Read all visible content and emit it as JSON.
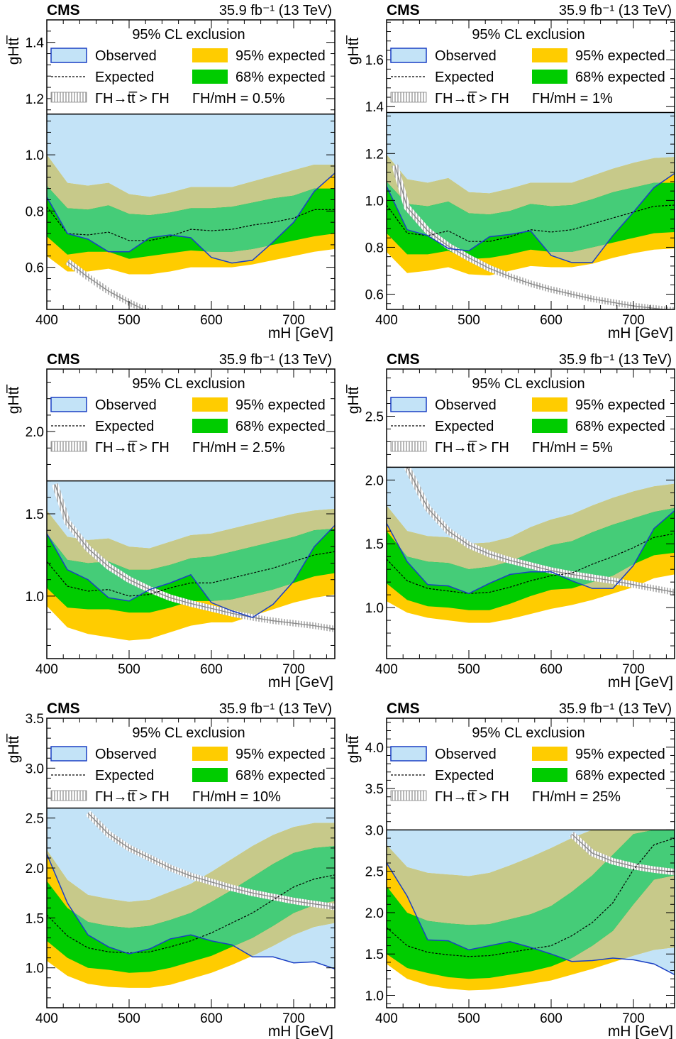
{
  "colors": {
    "observed_fill": "#c3e3f7",
    "observed_line": "#1a3fc4",
    "band95": "#ffcc00",
    "band68": "#00cc00",
    "overlay_olive": "#c7c98a",
    "overlay_green": "#45cc78",
    "hatch": "#888888"
  },
  "chart_data": [
    {
      "type": "line",
      "cms_label": "CMS",
      "lumi_label": "35.9 fb⁻¹ (13 TeV)",
      "legend_header": "95% CL exclusion",
      "legend_observed": "Observed",
      "legend_expected": "Expected",
      "legend_95": "95% expected",
      "legend_68": "68% expected",
      "legend_width_ratio": "ΓH→tt̅ > ΓH",
      "width_label": "ΓH/mH = 0.5%",
      "ylabel": "gHtt̅",
      "xlabel": "mH [GeV]",
      "xlim": [
        400,
        750
      ],
      "ylim": [
        0.45,
        1.48
      ],
      "y_legend_bottom": 1.145,
      "y_ticks": [
        0.6,
        0.8,
        1.0,
        1.2,
        1.4
      ],
      "y_tick_labels": [
        "0.6",
        "0.8",
        "1.0",
        "1.2",
        "1.4"
      ],
      "x_ticks": [
        400,
        500,
        600,
        700
      ],
      "x_tick_labels": [
        "400",
        "500",
        "600",
        "700"
      ],
      "mass": [
        400,
        425,
        450,
        475,
        500,
        525,
        550,
        575,
        600,
        625,
        650,
        675,
        700,
        725,
        750
      ],
      "observed": [
        0.85,
        0.72,
        0.7,
        0.655,
        0.655,
        0.705,
        0.715,
        0.705,
        0.635,
        0.615,
        0.625,
        0.69,
        0.76,
        0.87,
        0.935
      ],
      "expected": [
        0.815,
        0.72,
        0.715,
        0.725,
        0.695,
        0.695,
        0.71,
        0.735,
        0.73,
        0.735,
        0.75,
        0.76,
        0.775,
        0.805,
        0.805
      ],
      "expected_68_low": [
        0.71,
        0.645,
        0.655,
        0.655,
        0.63,
        0.64,
        0.65,
        0.66,
        0.655,
        0.655,
        0.665,
        0.68,
        0.695,
        0.71,
        0.72
      ],
      "expected_68_high": [
        0.89,
        0.81,
        0.805,
        0.82,
        0.79,
        0.785,
        0.795,
        0.81,
        0.81,
        0.815,
        0.83,
        0.845,
        0.855,
        0.88,
        0.88
      ],
      "expected_95_low": [
        0.64,
        0.585,
        0.585,
        0.595,
        0.575,
        0.575,
        0.585,
        0.6,
        0.6,
        0.6,
        0.61,
        0.625,
        0.64,
        0.655,
        0.665
      ],
      "expected_95_high": [
        1.0,
        0.9,
        0.89,
        0.9,
        0.86,
        0.85,
        0.865,
        0.885,
        0.885,
        0.885,
        0.905,
        0.925,
        0.945,
        0.965,
        0.965
      ],
      "width_limit_mass": [
        425,
        450,
        475,
        500,
        525,
        550,
        575,
        600,
        625,
        650,
        675,
        700,
        725,
        750
      ],
      "width_limit": [
        0.62,
        0.565,
        0.515,
        0.475,
        0.44,
        0.41,
        0.385,
        0.36,
        0.34,
        0.32,
        0.305,
        0.29,
        0.275,
        0.26
      ]
    },
    {
      "type": "line",
      "cms_label": "CMS",
      "lumi_label": "35.9 fb⁻¹ (13 TeV)",
      "legend_header": "95% CL exclusion",
      "legend_observed": "Observed",
      "legend_expected": "Expected",
      "legend_95": "95% expected",
      "legend_68": "68% expected",
      "legend_width_ratio": "ΓH→tt̅ > ΓH",
      "width_label": "ΓH/mH = 1%",
      "ylabel": "gHtt̅",
      "xlabel": "mH [GeV]",
      "xlim": [
        400,
        750
      ],
      "ylim": [
        0.535,
        1.77
      ],
      "y_legend_bottom": 1.375,
      "y_ticks": [
        0.6,
        0.8,
        1.0,
        1.2,
        1.4,
        1.6
      ],
      "y_tick_labels": [
        "0.6",
        "0.8",
        "1.0",
        "1.2",
        "1.4",
        "1.6"
      ],
      "x_ticks": [
        400,
        500,
        600,
        700
      ],
      "x_tick_labels": [
        "400",
        "500",
        "600",
        "700"
      ],
      "mass": [
        400,
        425,
        450,
        475,
        500,
        525,
        550,
        575,
        600,
        625,
        650,
        675,
        700,
        725,
        750
      ],
      "observed": [
        1.06,
        0.875,
        0.85,
        0.795,
        0.785,
        0.845,
        0.855,
        0.87,
        0.765,
        0.735,
        0.735,
        0.85,
        0.95,
        1.055,
        1.115
      ],
      "expected": [
        0.98,
        0.86,
        0.85,
        0.87,
        0.825,
        0.825,
        0.845,
        0.875,
        0.865,
        0.875,
        0.9,
        0.925,
        0.95,
        0.975,
        0.98
      ],
      "expected_68_low": [
        0.86,
        0.77,
        0.77,
        0.785,
        0.75,
        0.755,
        0.77,
        0.79,
        0.78,
        0.78,
        0.8,
        0.82,
        0.84,
        0.86,
        0.865
      ],
      "expected_68_high": [
        1.08,
        0.985,
        0.975,
        0.995,
        0.945,
        0.94,
        0.955,
        0.985,
        0.975,
        0.98,
        1.005,
        1.035,
        1.055,
        1.075,
        1.075
      ],
      "expected_95_low": [
        0.78,
        0.69,
        0.7,
        0.715,
        0.685,
        0.68,
        0.7,
        0.72,
        0.715,
        0.715,
        0.73,
        0.755,
        0.775,
        0.79,
        0.795
      ],
      "expected_95_high": [
        1.195,
        1.09,
        1.075,
        1.095,
        1.035,
        1.03,
        1.05,
        1.075,
        1.075,
        1.075,
        1.105,
        1.135,
        1.16,
        1.18,
        1.185
      ],
      "width_limit_mass": [
        410,
        425,
        450,
        475,
        500,
        525,
        550,
        575,
        600,
        625,
        650,
        675,
        700,
        725,
        750
      ],
      "width_limit": [
        1.15,
        0.97,
        0.87,
        0.805,
        0.755,
        0.71,
        0.675,
        0.645,
        0.62,
        0.6,
        0.58,
        0.565,
        0.55,
        0.54,
        0.53
      ]
    },
    {
      "type": "line",
      "cms_label": "CMS",
      "lumi_label": "35.9 fb⁻¹ (13 TeV)",
      "legend_header": "95% CL exclusion",
      "legend_observed": "Observed",
      "legend_expected": "Expected",
      "legend_95": "95% expected",
      "legend_68": "68% expected",
      "legend_width_ratio": "ΓH→tt̅ > ΓH",
      "width_label": "ΓH/mH = 2.5%",
      "ylabel": "gHtt̅",
      "xlabel": "mH [GeV]",
      "xlim": [
        400,
        750
      ],
      "ylim": [
        0.62,
        2.38
      ],
      "y_legend_bottom": 1.7,
      "y_ticks": [
        1.0,
        1.5,
        2.0
      ],
      "y_tick_labels": [
        "1.0",
        "1.5",
        "2.0"
      ],
      "x_ticks": [
        400,
        500,
        600,
        700
      ],
      "x_tick_labels": [
        "400",
        "500",
        "600",
        "700"
      ],
      "mass": [
        400,
        425,
        450,
        475,
        500,
        525,
        550,
        575,
        600,
        625,
        650,
        675,
        700,
        725,
        750
      ],
      "observed": [
        1.38,
        1.16,
        1.1,
        0.99,
        0.97,
        1.04,
        1.08,
        1.13,
        0.96,
        0.91,
        0.87,
        0.95,
        1.09,
        1.3,
        1.43
      ],
      "expected": [
        1.21,
        1.06,
        1.03,
        1.04,
        1.0,
        1.01,
        1.05,
        1.08,
        1.08,
        1.11,
        1.14,
        1.17,
        1.21,
        1.25,
        1.27
      ],
      "expected_68_low": [
        1.05,
        0.93,
        0.92,
        0.92,
        0.9,
        0.9,
        0.93,
        0.97,
        0.97,
        0.98,
        1.01,
        1.04,
        1.08,
        1.12,
        1.14
      ],
      "expected_68_high": [
        1.38,
        1.22,
        1.2,
        1.21,
        1.16,
        1.16,
        1.19,
        1.23,
        1.24,
        1.27,
        1.3,
        1.33,
        1.36,
        1.4,
        1.41
      ],
      "expected_95_low": [
        0.94,
        0.81,
        0.77,
        0.75,
        0.73,
        0.74,
        0.78,
        0.82,
        0.84,
        0.84,
        0.88,
        0.92,
        0.96,
        0.99,
        1.01
      ],
      "expected_95_high": [
        1.52,
        1.36,
        1.34,
        1.35,
        1.3,
        1.29,
        1.33,
        1.37,
        1.38,
        1.41,
        1.44,
        1.47,
        1.5,
        1.52,
        1.53
      ],
      "width_limit_mass": [
        410,
        425,
        450,
        475,
        500,
        525,
        550,
        575,
        600,
        625,
        650,
        675,
        700,
        725,
        750
      ],
      "width_limit": [
        1.68,
        1.45,
        1.29,
        1.18,
        1.1,
        1.04,
        0.99,
        0.955,
        0.925,
        0.895,
        0.87,
        0.85,
        0.835,
        0.82,
        0.8
      ]
    },
    {
      "type": "line",
      "cms_label": "CMS",
      "lumi_label": "35.9 fb⁻¹ (13 TeV)",
      "legend_header": "95% CL exclusion",
      "legend_observed": "Observed",
      "legend_expected": "Expected",
      "legend_95": "95% expected",
      "legend_68": "68% expected",
      "legend_width_ratio": "ΓH→tt̅ > ΓH",
      "width_label": "ΓH/mH = 5%",
      "ylabel": "gHtt̅",
      "xlabel": "mH [GeV]",
      "xlim": [
        400,
        750
      ],
      "ylim": [
        0.6,
        2.87
      ],
      "y_legend_bottom": 2.1,
      "y_ticks": [
        1.0,
        1.5,
        2.0,
        2.5
      ],
      "y_tick_labels": [
        "1.0",
        "1.5",
        "2.0",
        "2.5"
      ],
      "x_ticks": [
        400,
        500,
        600,
        700
      ],
      "x_tick_labels": [
        "400",
        "500",
        "600",
        "700"
      ],
      "mass": [
        400,
        425,
        450,
        475,
        500,
        525,
        550,
        575,
        600,
        625,
        650,
        675,
        700,
        725,
        750
      ],
      "observed": [
        1.66,
        1.36,
        1.18,
        1.17,
        1.11,
        1.19,
        1.26,
        1.28,
        1.28,
        1.21,
        1.15,
        1.15,
        1.33,
        1.62,
        1.76
      ],
      "expected": [
        1.38,
        1.21,
        1.15,
        1.13,
        1.11,
        1.12,
        1.16,
        1.21,
        1.25,
        1.27,
        1.34,
        1.4,
        1.47,
        1.55,
        1.58
      ],
      "expected_68_low": [
        1.19,
        1.06,
        1.01,
        1.0,
        0.98,
        0.98,
        1.03,
        1.09,
        1.14,
        1.15,
        1.2,
        1.25,
        1.34,
        1.41,
        1.43
      ],
      "expected_68_high": [
        1.6,
        1.4,
        1.36,
        1.35,
        1.3,
        1.32,
        1.36,
        1.43,
        1.49,
        1.52,
        1.59,
        1.65,
        1.7,
        1.75,
        1.78
      ],
      "expected_95_low": [
        1.05,
        0.96,
        0.92,
        0.9,
        0.88,
        0.88,
        0.91,
        0.95,
        0.99,
        1.02,
        1.06,
        1.11,
        1.16,
        1.23,
        1.26
      ],
      "expected_95_high": [
        1.8,
        1.6,
        1.56,
        1.55,
        1.5,
        1.51,
        1.55,
        1.63,
        1.69,
        1.73,
        1.8,
        1.86,
        1.91,
        1.95,
        1.97
      ],
      "width_limit_mass": [
        425,
        450,
        475,
        500,
        525,
        550,
        575,
        600,
        625,
        650,
        675,
        700,
        725,
        750
      ],
      "width_limit": [
        2.1,
        1.78,
        1.6,
        1.49,
        1.42,
        1.37,
        1.33,
        1.29,
        1.26,
        1.235,
        1.21,
        1.18,
        1.15,
        1.12
      ]
    },
    {
      "type": "line",
      "cms_label": "CMS",
      "lumi_label": "35.9 fb⁻¹ (13 TeV)",
      "legend_header": "95% CL exclusion",
      "legend_observed": "Observed",
      "legend_expected": "Expected",
      "legend_95": "95% expected",
      "legend_68": "68% expected",
      "legend_width_ratio": "ΓH→tt̅ > ΓH",
      "width_label": "ΓH/mH = 10%",
      "ylabel": "gHtt̅",
      "xlabel": "mH [GeV]",
      "xlim": [
        400,
        750
      ],
      "ylim": [
        0.6,
        3.5
      ],
      "y_legend_bottom": 2.6,
      "y_ticks": [
        1.0,
        1.5,
        2.0,
        2.5,
        3.0,
        3.5
      ],
      "y_tick_labels": [
        "1.0",
        "1.5",
        "2.0",
        "2.5",
        "3.0",
        "3.5"
      ],
      "x_ticks": [
        400,
        500,
        600,
        700
      ],
      "x_tick_labels": [
        "400",
        "500",
        "600",
        "700"
      ],
      "mass": [
        400,
        425,
        450,
        475,
        500,
        525,
        550,
        575,
        600,
        625,
        650,
        675,
        700,
        725,
        750
      ],
      "observed": [
        2.14,
        1.65,
        1.33,
        1.21,
        1.14,
        1.19,
        1.29,
        1.33,
        1.27,
        1.23,
        1.11,
        1.11,
        1.05,
        1.06,
        0.99
      ],
      "expected": [
        1.53,
        1.32,
        1.2,
        1.16,
        1.15,
        1.16,
        1.21,
        1.27,
        1.35,
        1.45,
        1.55,
        1.68,
        1.81,
        1.89,
        1.93
      ],
      "expected_68_low": [
        1.27,
        1.1,
        1.0,
        0.98,
        0.95,
        0.96,
        1.0,
        1.06,
        1.12,
        1.21,
        1.3,
        1.42,
        1.55,
        1.63,
        1.67
      ],
      "expected_68_high": [
        1.87,
        1.6,
        1.46,
        1.42,
        1.4,
        1.42,
        1.48,
        1.55,
        1.66,
        1.78,
        1.91,
        2.04,
        2.15,
        2.2,
        2.22
      ],
      "expected_95_low": [
        1.07,
        0.92,
        0.84,
        0.81,
        0.8,
        0.8,
        0.83,
        0.89,
        0.95,
        1.03,
        1.12,
        1.22,
        1.33,
        1.41,
        1.45
      ],
      "expected_95_high": [
        2.18,
        1.88,
        1.73,
        1.69,
        1.66,
        1.68,
        1.76,
        1.84,
        1.96,
        2.09,
        2.22,
        2.33,
        2.41,
        2.45,
        2.45
      ],
      "width_limit_mass": [
        450,
        475,
        500,
        525,
        550,
        575,
        600,
        625,
        650,
        675,
        700,
        725,
        750
      ],
      "width_limit": [
        2.55,
        2.34,
        2.2,
        2.1,
        2.0,
        1.92,
        1.86,
        1.8,
        1.75,
        1.71,
        1.67,
        1.64,
        1.61
      ]
    },
    {
      "type": "line",
      "cms_label": "CMS",
      "lumi_label": "35.9 fb⁻¹ (13 TeV)",
      "legend_header": "95% CL exclusion",
      "legend_observed": "Observed",
      "legend_expected": "Expected",
      "legend_95": "95% expected",
      "legend_68": "68% expected",
      "legend_width_ratio": "ΓH→tt̅ > ΓH",
      "width_label": "ΓH/mH = 25%",
      "ylabel": "gHtt̅",
      "xlabel": "mH [GeV]",
      "xlim": [
        400,
        750
      ],
      "ylim": [
        0.85,
        4.35
      ],
      "y_legend_bottom": 3.0,
      "y_ticks": [
        1.0,
        1.5,
        2.0,
        2.5,
        3.0,
        3.5,
        4.0
      ],
      "y_tick_labels": [
        "1.0",
        "1.5",
        "2.0",
        "2.5",
        "3.0",
        "3.5",
        "4.0"
      ],
      "x_ticks": [
        400,
        500,
        600,
        700
      ],
      "x_tick_labels": [
        "400",
        "500",
        "600",
        "700"
      ],
      "mass": [
        400,
        425,
        450,
        475,
        500,
        525,
        550,
        575,
        600,
        625,
        650,
        675,
        700,
        725,
        750
      ],
      "observed": [
        2.6,
        2.2,
        1.67,
        1.66,
        1.55,
        1.6,
        1.65,
        1.58,
        1.5,
        1.41,
        1.42,
        1.45,
        1.43,
        1.38,
        1.25
      ],
      "expected": [
        1.82,
        1.6,
        1.52,
        1.49,
        1.47,
        1.48,
        1.52,
        1.56,
        1.6,
        1.72,
        1.88,
        2.12,
        2.52,
        2.82,
        2.9
      ],
      "expected_68_low": [
        1.5,
        1.33,
        1.27,
        1.22,
        1.2,
        1.21,
        1.25,
        1.29,
        1.35,
        1.45,
        1.6,
        1.78,
        2.1,
        2.4,
        2.45
      ],
      "expected_68_high": [
        2.32,
        2.0,
        1.9,
        1.87,
        1.85,
        1.86,
        1.92,
        1.98,
        2.08,
        2.25,
        2.45,
        2.7,
        2.95,
        3.0,
        3.0
      ],
      "expected_95_low": [
        1.38,
        1.2,
        1.12,
        1.08,
        1.06,
        1.07,
        1.1,
        1.14,
        1.18,
        1.25,
        1.32,
        1.4,
        1.48,
        1.55,
        1.58
      ],
      "expected_95_high": [
        2.82,
        2.55,
        2.48,
        2.46,
        2.44,
        2.48,
        2.57,
        2.67,
        2.78,
        2.9,
        3.0,
        3.0,
        3.0,
        3.0,
        3.0
      ],
      "width_limit_mass": [
        625,
        650,
        675,
        700,
        725,
        750
      ],
      "width_limit": [
        2.95,
        2.72,
        2.62,
        2.56,
        2.52,
        2.49
      ]
    }
  ]
}
